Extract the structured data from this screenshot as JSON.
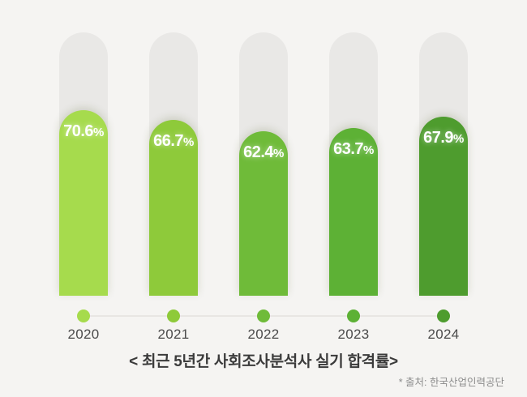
{
  "chart_data": {
    "type": "bar",
    "categories": [
      "2020",
      "2021",
      "2022",
      "2023",
      "2024"
    ],
    "values": [
      70.6,
      66.7,
      62.4,
      63.7,
      67.9
    ],
    "value_labels": [
      "70.6",
      "66.7",
      "62.4",
      "63.7",
      "67.9"
    ],
    "unit": "%",
    "title": "< 최근 5년간 사회조사분석사 실기 합격률>",
    "source": "* 출처: 한국산업인력공단",
    "ylim": [
      0,
      100
    ],
    "grid": false,
    "legend": "none",
    "bar_colors": [
      "#a6db4d",
      "#8eca3a",
      "#6fbb39",
      "#5db135",
      "#4e9c2e"
    ],
    "track_color": "#e9e8e6",
    "background_color": "#f5f4f2",
    "timeline_line_color": "#e8e6e3",
    "text_color_value": "#ffffff",
    "text_color_year": "#4b4b4b",
    "text_color_title": "#3b3b3b",
    "text_color_source": "#8c8c8c"
  }
}
